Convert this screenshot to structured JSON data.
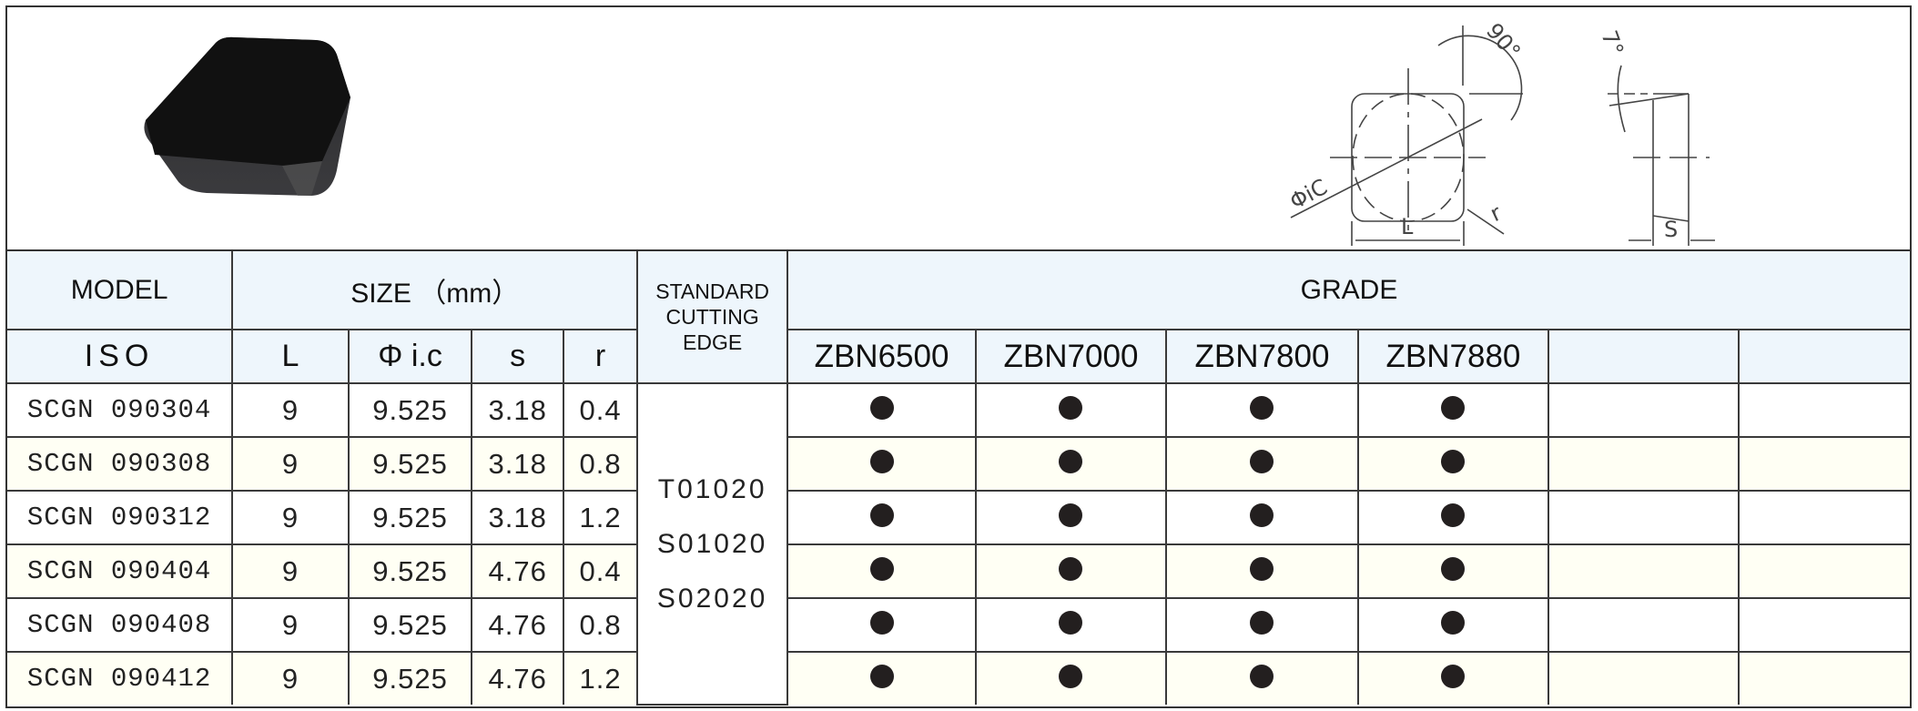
{
  "diagram": {
    "angle_90": "90°",
    "angle_7": "7°",
    "ic_label": "ΦiC",
    "r_label": "r",
    "l_label": "L",
    "s_label": "S"
  },
  "header": {
    "model": "MODEL",
    "size": "SIZE （mm）",
    "standard_cutting_edge": [
      "STANDARD",
      "CUTTING",
      "EDGE"
    ],
    "grade": "GRADE",
    "iso": "ISO",
    "l": "L",
    "ic": "Φ i.c",
    "s": "s",
    "r": "r",
    "grades": [
      "ZBN6500",
      "ZBN7000",
      "ZBN7800",
      "ZBN7880",
      "",
      ""
    ]
  },
  "cutting_edge": [
    "T01020",
    "S01020",
    "S02020"
  ],
  "rows": [
    {
      "model": "SCGN 090304",
      "l": "9",
      "ic": "9.525",
      "s": "3.18",
      "r": "0.4",
      "grades": [
        true,
        true,
        true,
        true,
        false,
        false
      ]
    },
    {
      "model": "SCGN 090308",
      "l": "9",
      "ic": "9.525",
      "s": "3.18",
      "r": "0.8",
      "grades": [
        true,
        true,
        true,
        true,
        false,
        false
      ]
    },
    {
      "model": "SCGN 090312",
      "l": "9",
      "ic": "9.525",
      "s": "3.18",
      "r": "1.2",
      "grades": [
        true,
        true,
        true,
        true,
        false,
        false
      ]
    },
    {
      "model": "SCGN 090404",
      "l": "9",
      "ic": "9.525",
      "s": "4.76",
      "r": "0.4",
      "grades": [
        true,
        true,
        true,
        true,
        false,
        false
      ]
    },
    {
      "model": "SCGN 090408",
      "l": "9",
      "ic": "9.525",
      "s": "4.76",
      "r": "0.8",
      "grades": [
        true,
        true,
        true,
        true,
        false,
        false
      ]
    },
    {
      "model": "SCGN 090412",
      "l": "9",
      "ic": "9.525",
      "s": "4.76",
      "r": "1.2",
      "grades": [
        true,
        true,
        true,
        true,
        false,
        false
      ]
    }
  ],
  "colors": {
    "header_bg": "#eef6fc",
    "alt_row_bg": "#fffff4",
    "dot": "#231f1f",
    "border": "#333333"
  }
}
